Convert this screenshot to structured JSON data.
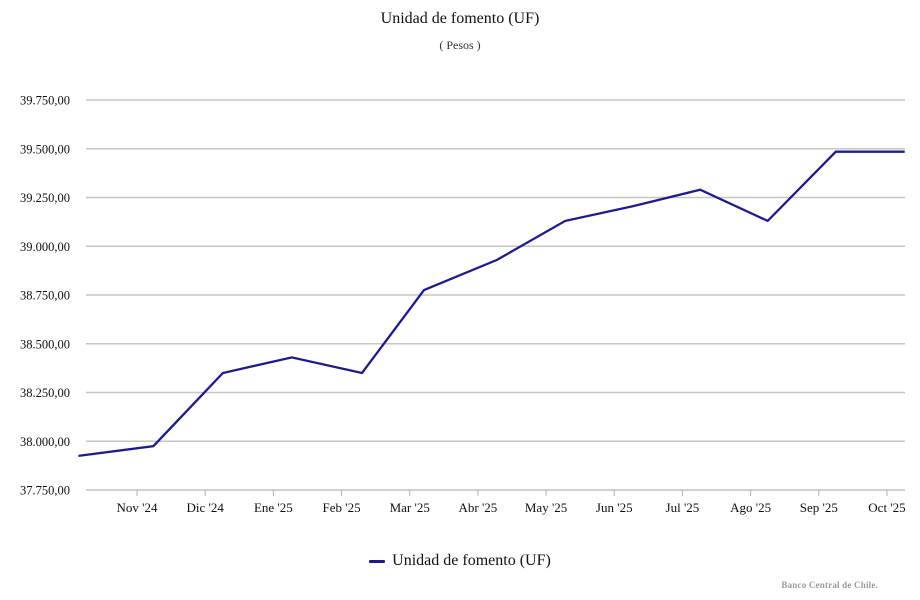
{
  "page": {
    "background": "#ffffff"
  },
  "chart_data": {
    "type": "line",
    "title": "Unidad de fomento (UF)",
    "subtitle": "( Pesos )",
    "source_note": "Banco Central de Chile.",
    "grid": true,
    "legend": {
      "position": "bottom",
      "entries": [
        {
          "label": "Unidad de fomento (UF)",
          "color": "#1c1c8f"
        }
      ]
    },
    "y_axis": {
      "min": 37750,
      "max": 39750,
      "ticks": [
        {
          "label": "39.750,00",
          "value": 39750
        },
        {
          "label": "39.500,00",
          "value": 39500
        },
        {
          "label": "39.250,00",
          "value": 39250
        },
        {
          "label": "39.000,00",
          "value": 39000
        },
        {
          "label": "38.750,00",
          "value": 38750
        },
        {
          "label": "38.500,00",
          "value": 38500
        },
        {
          "label": "38.250,00",
          "value": 38250
        },
        {
          "label": "38.000,00",
          "value": 38000
        },
        {
          "label": "37.750,00",
          "value": 37750
        }
      ]
    },
    "x_axis": {
      "ticks": [
        "Nov '24",
        "Dic '24",
        "Ene '25",
        "Feb '25",
        "Mar '25",
        "Abr '25",
        "May '25",
        "Jun '25",
        "Jul '25",
        "Ago '25",
        "Sep '25",
        "Oct '25"
      ]
    },
    "series": [
      {
        "name": "Unidad de fomento (UF)",
        "color": "#1c1c8f",
        "points": [
          {
            "x": -0.86,
            "v": 37925
          },
          {
            "x": 0.24,
            "v": 37975
          },
          {
            "x": 1.26,
            "v": 38350
          },
          {
            "x": 2.27,
            "v": 38430
          },
          {
            "x": 3.3,
            "v": 38350
          },
          {
            "x": 4.21,
            "v": 38775
          },
          {
            "x": 5.28,
            "v": 38930
          },
          {
            "x": 6.28,
            "v": 39130
          },
          {
            "x": 7.27,
            "v": 39205
          },
          {
            "x": 8.26,
            "v": 39290
          },
          {
            "x": 9.25,
            "v": 39130
          },
          {
            "x": 10.25,
            "v": 39485
          },
          {
            "x": 11.26,
            "v": 39485
          }
        ]
      }
    ],
    "colors": {
      "line": "#1c1c8f",
      "grid": "#c6c6c6",
      "axis": "#c0c0c0",
      "tick": "#b3b3b3",
      "text": "#111111",
      "source": "#9a9a9a"
    }
  }
}
